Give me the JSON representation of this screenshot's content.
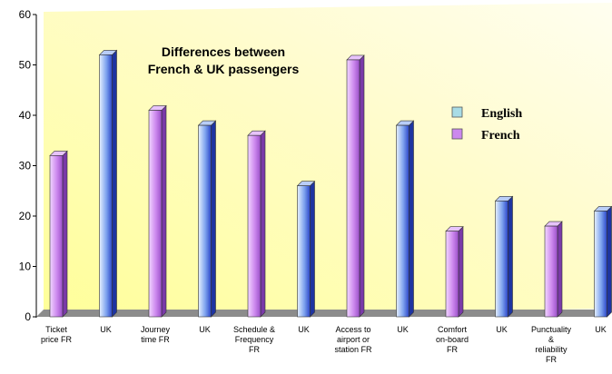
{
  "chart_data": {
    "type": "bar",
    "title_lines": [
      "Differences between",
      "French & UK passengers"
    ],
    "ylim": [
      0,
      60
    ],
    "yticks": [
      0,
      10,
      20,
      30,
      40,
      50,
      60
    ],
    "grid": false,
    "legend_position": "right",
    "legend": [
      {
        "label": "English",
        "color": "#a8dce6"
      },
      {
        "label": "French",
        "color": "#cc88ee"
      }
    ],
    "bars": [
      {
        "label_lines": [
          "Ticket",
          "price FR"
        ],
        "value": 32,
        "series": "French"
      },
      {
        "label_lines": [
          "UK"
        ],
        "value": 52,
        "series": "UK"
      },
      {
        "label_lines": [
          "Journey",
          "time FR"
        ],
        "value": 41,
        "series": "French"
      },
      {
        "label_lines": [
          "UK"
        ],
        "value": 38,
        "series": "UK"
      },
      {
        "label_lines": [
          "Schedule &",
          "Frequency",
          "FR"
        ],
        "value": 36,
        "series": "French"
      },
      {
        "label_lines": [
          "UK"
        ],
        "value": 26,
        "series": "UK"
      },
      {
        "label_lines": [
          "Access to",
          "airport or",
          "station FR"
        ],
        "value": 51,
        "series": "French"
      },
      {
        "label_lines": [
          "UK"
        ],
        "value": 38,
        "series": "UK"
      },
      {
        "label_lines": [
          "Comfort",
          "on-board",
          "FR"
        ],
        "value": 17,
        "series": "French"
      },
      {
        "label_lines": [
          "UK"
        ],
        "value": 23,
        "series": "UK"
      },
      {
        "label_lines": [
          "Punctuality",
          "&",
          "reliability",
          "FR"
        ],
        "value": 18,
        "series": "French"
      },
      {
        "label_lines": [
          "UK"
        ],
        "value": 21,
        "series": "UK"
      }
    ]
  }
}
